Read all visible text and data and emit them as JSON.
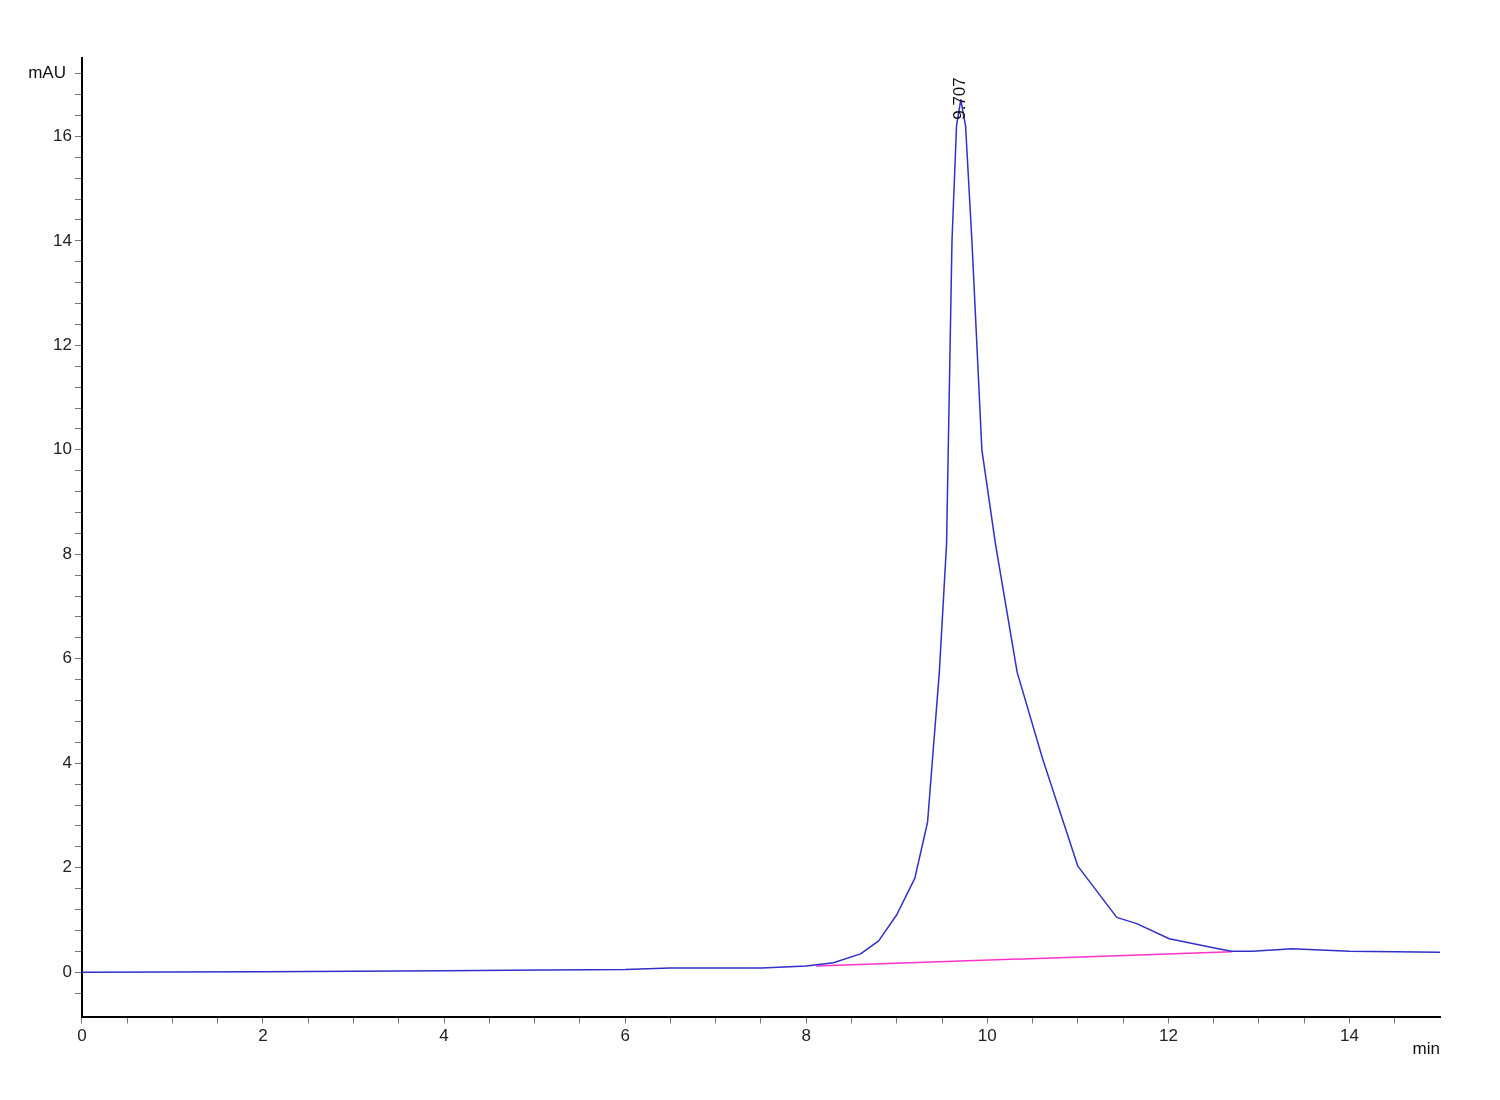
{
  "chart_data": {
    "type": "line",
    "xlabel": "min",
    "ylabel": "mAU",
    "xlim": [
      0,
      15
    ],
    "xticks": [
      0,
      {
        "value": 0.5,
        "label": null
      },
      {
        "value": 1,
        "label": null
      },
      {
        "value": 1.5,
        "label": null
      },
      2,
      {
        "value": 2.5,
        "label": null
      },
      {
        "value": 3,
        "label": null
      },
      {
        "value": 3.5,
        "label": null
      },
      4,
      {
        "value": 4.5,
        "label": null
      },
      {
        "value": 5,
        "label": null
      },
      {
        "value": 5.5,
        "label": null
      },
      6,
      {
        "value": 6.5,
        "label": null
      },
      {
        "value": 7,
        "label": null
      },
      {
        "value": 7.5,
        "label": null
      },
      8,
      {
        "value": 8.5,
        "label": null
      },
      {
        "value": 9,
        "label": null
      },
      {
        "value": 9.5,
        "label": null
      },
      10,
      {
        "value": 10.5,
        "label": null
      },
      {
        "value": 11,
        "label": null
      },
      {
        "value": 11.5,
        "label": null
      },
      12,
      {
        "value": 12.5,
        "label": null
      },
      {
        "value": 13,
        "label": null
      },
      {
        "value": 13.5,
        "label": null
      },
      14,
      {
        "value": 14.5,
        "label": null
      }
    ],
    "ylim": [
      -0.85,
      17.5
    ],
    "yticks": [
      {
        "value": -0.4,
        "label": null
      },
      0,
      {
        "value": 0.4,
        "label": null
      },
      {
        "value": 0.8,
        "label": null
      },
      {
        "value": 1.2,
        "label": null
      },
      {
        "value": 1.6,
        "label": null
      },
      2,
      {
        "value": 2.4,
        "label": null
      },
      {
        "value": 2.8,
        "label": null
      },
      {
        "value": 3.2,
        "label": null
      },
      {
        "value": 3.6,
        "label": null
      },
      4,
      {
        "value": 4.4,
        "label": null
      },
      {
        "value": 4.8,
        "label": null
      },
      {
        "value": 5.2,
        "label": null
      },
      {
        "value": 5.6,
        "label": null
      },
      6,
      {
        "value": 6.4,
        "label": null
      },
      {
        "value": 6.8,
        "label": null
      },
      {
        "value": 7.2,
        "label": null
      },
      {
        "value": 7.6,
        "label": null
      },
      8,
      {
        "value": 8.4,
        "label": null
      },
      {
        "value": 8.8,
        "label": null
      },
      {
        "value": 9.2,
        "label": null
      },
      {
        "value": 9.6,
        "label": null
      },
      10,
      {
        "value": 10.4,
        "label": null
      },
      {
        "value": 10.8,
        "label": null
      },
      {
        "value": 11.2,
        "label": null
      },
      {
        "value": 11.6,
        "label": null
      },
      12,
      {
        "value": 12.4,
        "label": null
      },
      {
        "value": 12.8,
        "label": null
      },
      {
        "value": 13.2,
        "label": null
      },
      {
        "value": 13.6,
        "label": null
      },
      14,
      {
        "value": 14.4,
        "label": null
      },
      {
        "value": 14.8,
        "label": null
      },
      {
        "value": 15.2,
        "label": null
      },
      {
        "value": 15.6,
        "label": null
      },
      16,
      {
        "value": 16.4,
        "label": null
      },
      {
        "value": 16.8,
        "label": null
      },
      {
        "value": 17.2,
        "label": null
      }
    ],
    "grid": false,
    "legend": false,
    "marker": "none",
    "line_style": "solid",
    "annotations": [
      {
        "text": "9.707",
        "x": 9.707,
        "y": 16.7
      }
    ],
    "series": [
      {
        "color": "#3030c8",
        "x": [
          0,
          2,
          4,
          6,
          6.5,
          7.5,
          8.0,
          8.3,
          8.6,
          8.8,
          9.0,
          9.2,
          9.34,
          9.47,
          9.55,
          9.61,
          9.66,
          9.707,
          9.76,
          9.83,
          9.94,
          10.09,
          10.33,
          10.61,
          11.0,
          11.43,
          11.65,
          12.01,
          12.55,
          12.7,
          12.93,
          13.36,
          14,
          15
        ],
        "values": [
          0,
          0.01,
          0.03,
          0.05,
          0.08,
          0.08,
          0.12,
          0.18,
          0.35,
          0.6,
          1.1,
          1.8,
          2.87,
          5.74,
          8.2,
          14,
          16.2,
          16.7,
          16.2,
          14,
          10,
          8.2,
          5.74,
          4.09,
          2.03,
          1.05,
          0.93,
          0.64,
          0.45,
          0.4,
          0.4,
          0.45,
          0.4,
          0.38
        ]
      },
      {
        "color": "#ff33cc",
        "x": [
          8.11,
          12.7
        ],
        "values": [
          0.12,
          0.39
        ]
      }
    ]
  }
}
